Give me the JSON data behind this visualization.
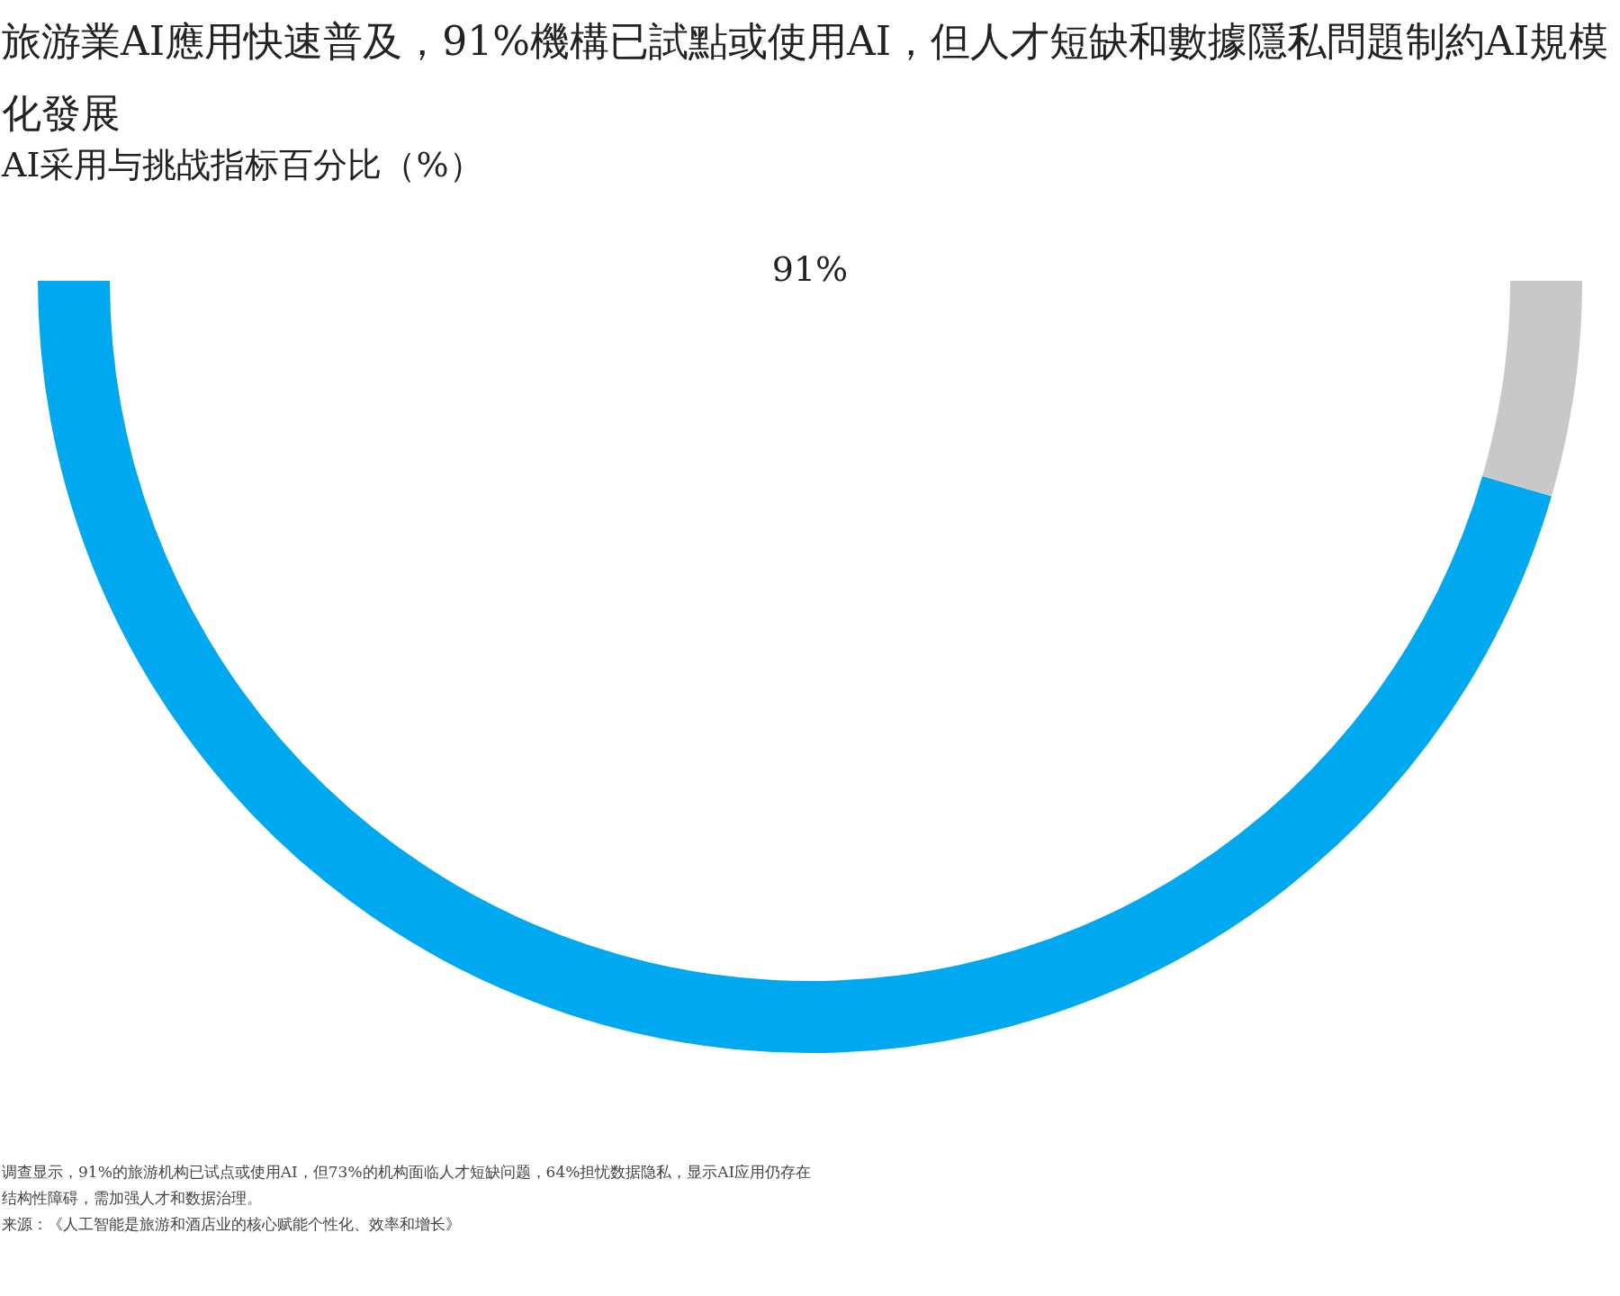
{
  "chart_data": {
    "type": "donut",
    "title": "旅游業AI應用快速普及，91%機構已試點或使用AI，但人才短缺和數據隱私問題制約AI規模化發展",
    "subtitle": "AI采用与挑战指标百分比（%）",
    "categories": [
      null,
      null
    ],
    "values": [
      91,
      9
    ],
    "colors": [
      "#00a8f0",
      "#c8c8c8"
    ],
    "annotations": [
      "91%",
      "调查显示，91%的旅游机构已试点或使用AI，但73%的机构面临人才短缺问题，64%担忧数据隐私，显示AI应用仍存在结构性障碍，需加强人才和数据治理。",
      "来源：《人工智能是旅游和酒店业的核心赋能个性化、效率和增长》"
    ]
  }
}
